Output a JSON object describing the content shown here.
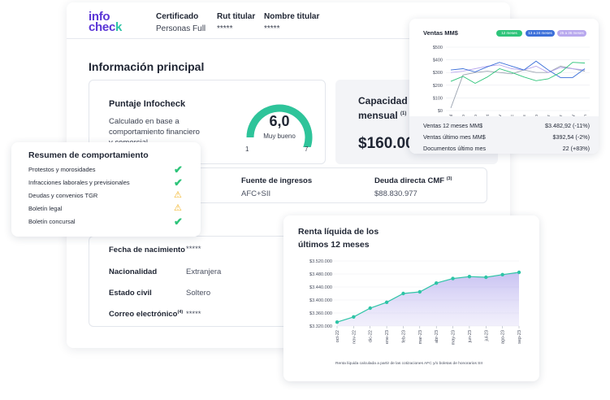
{
  "logo": {
    "top": "info",
    "bottom_a": "chec",
    "bottom_b": "k"
  },
  "header": {
    "certificado_label": "Certificado",
    "certificado_value": "Personas Full",
    "rut_label": "Rut titular",
    "rut_value": "*****",
    "nombre_label": "Nombre titular",
    "nombre_value": "*****"
  },
  "main": {
    "title": "Información principal",
    "score": {
      "title": "Puntaje Infocheck",
      "desc_1": "Calculado en base a",
      "desc_2": "comportamiento financiero",
      "desc_3": "y comercial",
      "value": "6,0",
      "label": "Muy bueno",
      "min": "1",
      "max": "7",
      "gauge_fraction": 0.83
    },
    "capacidad": {
      "title_1": "Capacidad de",
      "title_2": "mensual",
      "sup": "(1)",
      "value": "$160.00"
    },
    "fuente": {
      "label": "Fuente de ingresos",
      "value": "AFC+SII"
    },
    "deuda": {
      "label": "Deuda directa CMF",
      "sup": "(3)",
      "value": "$88.830.977"
    },
    "personal": [
      {
        "label": "Fecha de nacimiento",
        "value": "*****"
      },
      {
        "label": "Nacionalidad",
        "value": "Extranjera"
      },
      {
        "label": "Estado civil",
        "value": "Soltero"
      },
      {
        "label": "Correo electrónico",
        "sup": "(4)",
        "value": "*****"
      }
    ]
  },
  "resumen": {
    "title": "Resumen de comportamiento",
    "items": [
      {
        "label": "Protestos y morosidades",
        "status": "ok",
        "icon": "check-icon"
      },
      {
        "label": "Infracciones laborales y previsionales",
        "status": "ok",
        "icon": "check-icon"
      },
      {
        "label": "Deudas y convenios TGR",
        "status": "warn",
        "icon": "warning-icon"
      },
      {
        "label": "Boletín legal",
        "status": "warn",
        "icon": "warning-icon"
      },
      {
        "label": "Boletín concursal",
        "status": "ok",
        "icon": "check-icon"
      }
    ]
  },
  "ventas": {
    "title": "Ventas MM$",
    "legend": [
      "12 meses",
      "13 a 24 meses",
      "25 a 36 meses"
    ],
    "stats": [
      {
        "label": "Ventas 12 meses MM$",
        "value": "$3.482,92 (-11%)"
      },
      {
        "label": "Ventas último mes MM$",
        "value": "$392,54 (-2%)"
      },
      {
        "label": "Documentos último mes",
        "value": "22 (+83%)"
      }
    ]
  },
  "renta": {
    "title_1": "Renta líquida de los",
    "title_2": "últimos 12 meses",
    "footnote": "Renta líquida calculada a partir de las cotizaciones AFC y/o boletas de honorarios SII"
  },
  "chart_data": [
    {
      "type": "line",
      "title": "Ventas MM$",
      "categories": [
        "jul",
        "ago",
        "sep",
        "oct",
        "nov",
        "dic",
        "ene",
        "feb",
        "mar",
        "abr",
        "may",
        "jun"
      ],
      "y_ticks": [
        "$500",
        "$400",
        "$300",
        "$200",
        "$100",
        "$0"
      ],
      "ylim": [
        0,
        500
      ],
      "legend_position": "top-right",
      "series": [
        {
          "name": "12 meses",
          "color": "#2ec47a",
          "values": [
            230,
            270,
            215,
            265,
            330,
            300,
            265,
            235,
            250,
            300,
            380,
            375
          ]
        },
        {
          "name": "13 a 24 meses",
          "color": "#3b6fd9",
          "values": [
            320,
            330,
            305,
            345,
            380,
            350,
            320,
            390,
            320,
            260,
            260,
            330
          ]
        },
        {
          "name": "25 a 36 meses",
          "color": "#b8a8ee",
          "values": [
            300,
            310,
            330,
            350,
            360,
            330,
            320,
            350,
            300,
            340,
            330,
            320
          ]
        },
        {
          "name": "",
          "color": "#9aa3b0",
          "values": [
            20,
            280,
            300,
            310,
            300,
            290,
            320,
            300,
            300,
            350,
            330,
            310
          ]
        }
      ]
    },
    {
      "type": "area",
      "title": "Renta líquida de los últimos 12 meses",
      "categories": [
        "oct-22",
        "nov-22",
        "dic-22",
        "ene-23",
        "feb-23",
        "mar-23",
        "abr-23",
        "may-23",
        "jun-23",
        "jul-23",
        "ago-23",
        "sep-23"
      ],
      "y_ticks": [
        "$3.520.000",
        "$3.480.000",
        "$3.440.000",
        "$3.400.000",
        "$3.360.000",
        "$3.320.000"
      ],
      "ylim": [
        3320000,
        3520000
      ],
      "series": [
        {
          "name": "",
          "color": "#2ec4a6",
          "values": [
            3332000,
            3348000,
            3375000,
            3393000,
            3420000,
            3425000,
            3452000,
            3466000,
            3472000,
            3470000,
            3478000,
            3485000
          ]
        }
      ]
    }
  ]
}
